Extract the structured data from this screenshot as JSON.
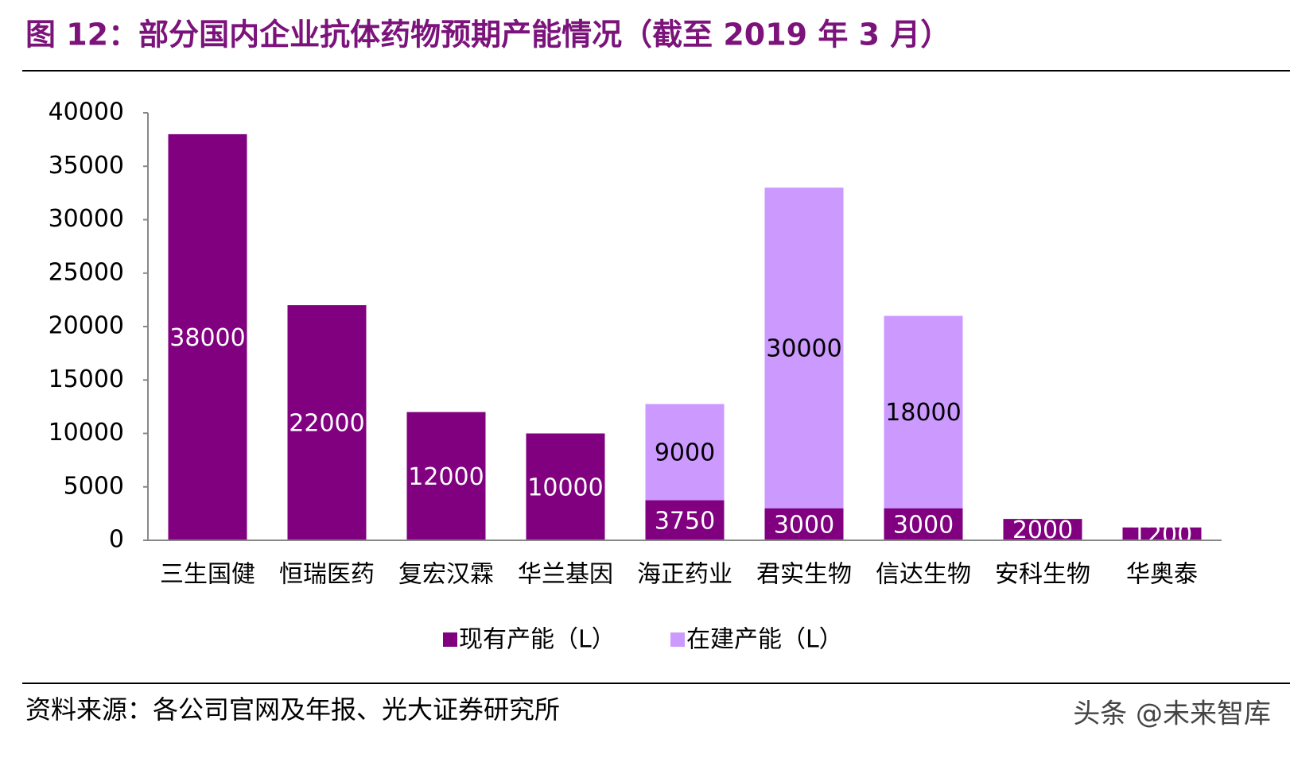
{
  "chart_data": {
    "type": "bar",
    "stacked": true,
    "title": "图 12：部分国内企业抗体药物预期产能情况（截至 2019 年 3 月）",
    "categories": [
      "三生国健",
      "恒瑞医药",
      "复宏汉霖",
      "华兰基因",
      "海正药业",
      "君实生物",
      "信达生物",
      "安科生物",
      "华奥泰"
    ],
    "series": [
      {
        "name": "现有产能（L）",
        "color": "#800080",
        "label_color": "#ffffff",
        "values": [
          38000,
          22000,
          12000,
          10000,
          3750,
          3000,
          3000,
          2000,
          1200
        ]
      },
      {
        "name": "在建产能（L）",
        "color": "#cc99ff",
        "label_color": "#000000",
        "values": [
          null,
          null,
          null,
          null,
          9000,
          30000,
          18000,
          null,
          null
        ]
      }
    ],
    "ylim": [
      0,
      40000
    ],
    "yticks": [
      0,
      5000,
      10000,
      15000,
      20000,
      25000,
      30000,
      35000,
      40000
    ],
    "grid": false,
    "legend": "bottom",
    "source": "资料来源：各公司官网及年报、光大证券研究所",
    "watermark": "头条 @未来智库"
  }
}
